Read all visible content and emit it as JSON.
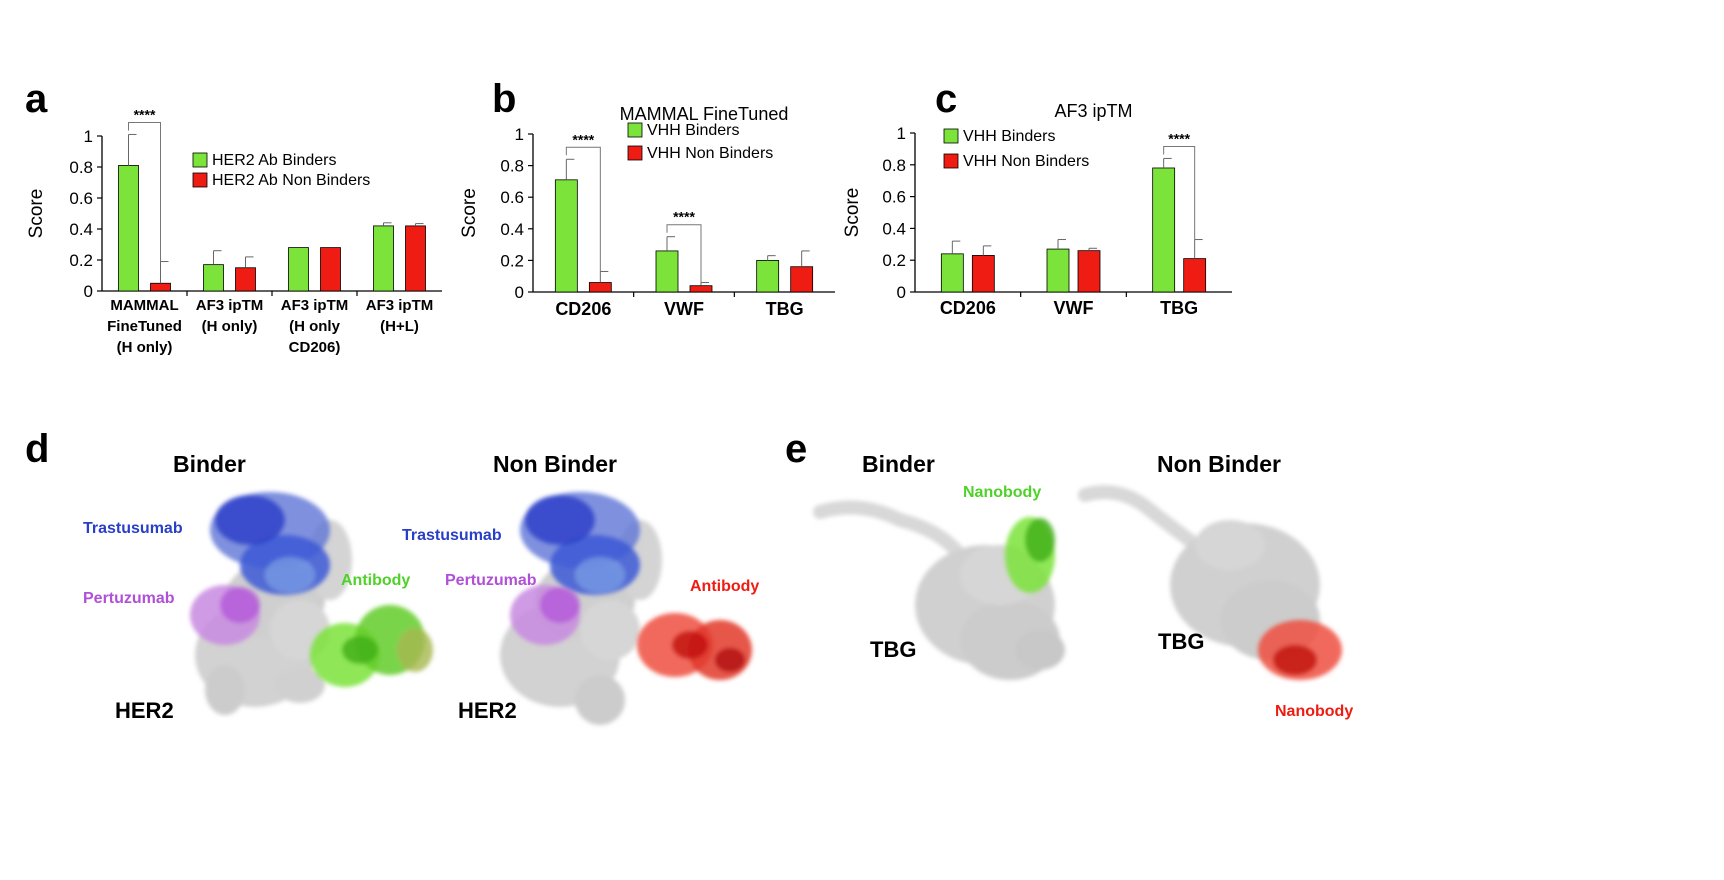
{
  "colors": {
    "green": "#7be33a",
    "red": "#ee1c12",
    "blue": "#2a3fc8",
    "light_blue": "#6f8fe0",
    "purple": "#b050d8",
    "gray": "#c8c8c8",
    "axis": "#000000"
  },
  "panels": {
    "a": {
      "letter": "a"
    },
    "b": {
      "letter": "b"
    },
    "c": {
      "letter": "c"
    },
    "d": {
      "letter": "d"
    },
    "e": {
      "letter": "e"
    }
  },
  "chart_data": [
    {
      "id": "a",
      "type": "bar",
      "title": "",
      "ylabel": "Score",
      "ylim": [
        0,
        1
      ],
      "yticks": [
        "0",
        "0.2",
        "0.4",
        "0.6",
        "0.8",
        "1"
      ],
      "categories": [
        [
          "MAMMAL",
          "FineTuned",
          "(H only)"
        ],
        [
          "AF3 ipTM",
          "(H only)"
        ],
        [
          "AF3 ipTM",
          "(H only",
          "CD206)"
        ],
        [
          "AF3 ipTM",
          "(H+L)"
        ]
      ],
      "series": [
        {
          "name": "HER2 Ab Binders",
          "color": "#7be33a",
          "values": [
            0.81,
            0.17,
            0.28,
            0.42
          ],
          "errors": [
            0.2,
            0.09,
            0.0,
            0.02
          ]
        },
        {
          "name": "HER2 Ab Non Binders",
          "color": "#ee1c12",
          "values": [
            0.05,
            0.15,
            0.28,
            0.42
          ],
          "errors": [
            0.14,
            0.07,
            0.0,
            0.015
          ]
        }
      ],
      "significance": [
        {
          "category": 0,
          "label": "****"
        }
      ]
    },
    {
      "id": "b",
      "type": "bar",
      "title": "MAMMAL FineTuned",
      "ylabel": "Score",
      "ylim": [
        0,
        1
      ],
      "yticks": [
        "0",
        "0.2",
        "0.4",
        "0.6",
        "0.8",
        "1"
      ],
      "categories": [
        [
          "CD206"
        ],
        [
          "VWF"
        ],
        [
          "TBG"
        ]
      ],
      "series": [
        {
          "name": "VHH Binders",
          "color": "#7be33a",
          "values": [
            0.71,
            0.26,
            0.2
          ],
          "errors": [
            0.13,
            0.09,
            0.03
          ]
        },
        {
          "name": "VHH Non Binders",
          "color": "#ee1c12",
          "values": [
            0.06,
            0.04,
            0.16
          ],
          "errors": [
            0.07,
            0.02,
            0.1
          ]
        }
      ],
      "significance": [
        {
          "category": 0,
          "label": "****"
        },
        {
          "category": 1,
          "label": "****"
        }
      ]
    },
    {
      "id": "c",
      "type": "bar",
      "title": "AF3 ipTM",
      "ylabel": "Score",
      "ylim": [
        0,
        1
      ],
      "yticks": [
        "0",
        "0.2",
        "0.4",
        "0.6",
        "0.8",
        "1"
      ],
      "categories": [
        [
          "CD206"
        ],
        [
          "VWF"
        ],
        [
          "TBG"
        ]
      ],
      "series": [
        {
          "name": "VHH Binders",
          "color": "#7be33a",
          "values": [
            0.24,
            0.27,
            0.78
          ],
          "errors": [
            0.08,
            0.06,
            0.06
          ]
        },
        {
          "name": "VHH Non Binders",
          "color": "#ee1c12",
          "values": [
            0.23,
            0.26,
            0.21
          ],
          "errors": [
            0.06,
            0.015,
            0.12
          ]
        }
      ],
      "significance": [
        {
          "category": 2,
          "label": "****"
        }
      ]
    }
  ],
  "structures": {
    "d": {
      "binder_title": "Binder",
      "nonbinder_title": "Non Binder",
      "trastuzumab": "Trastusumab",
      "pertuzumab": "Pertuzumab",
      "antibody": "Antibody",
      "her2": "HER2"
    },
    "e": {
      "binder_title": "Binder",
      "nonbinder_title": "Non Binder",
      "nanobody": "Nanobody",
      "tbg": "TBG"
    }
  }
}
